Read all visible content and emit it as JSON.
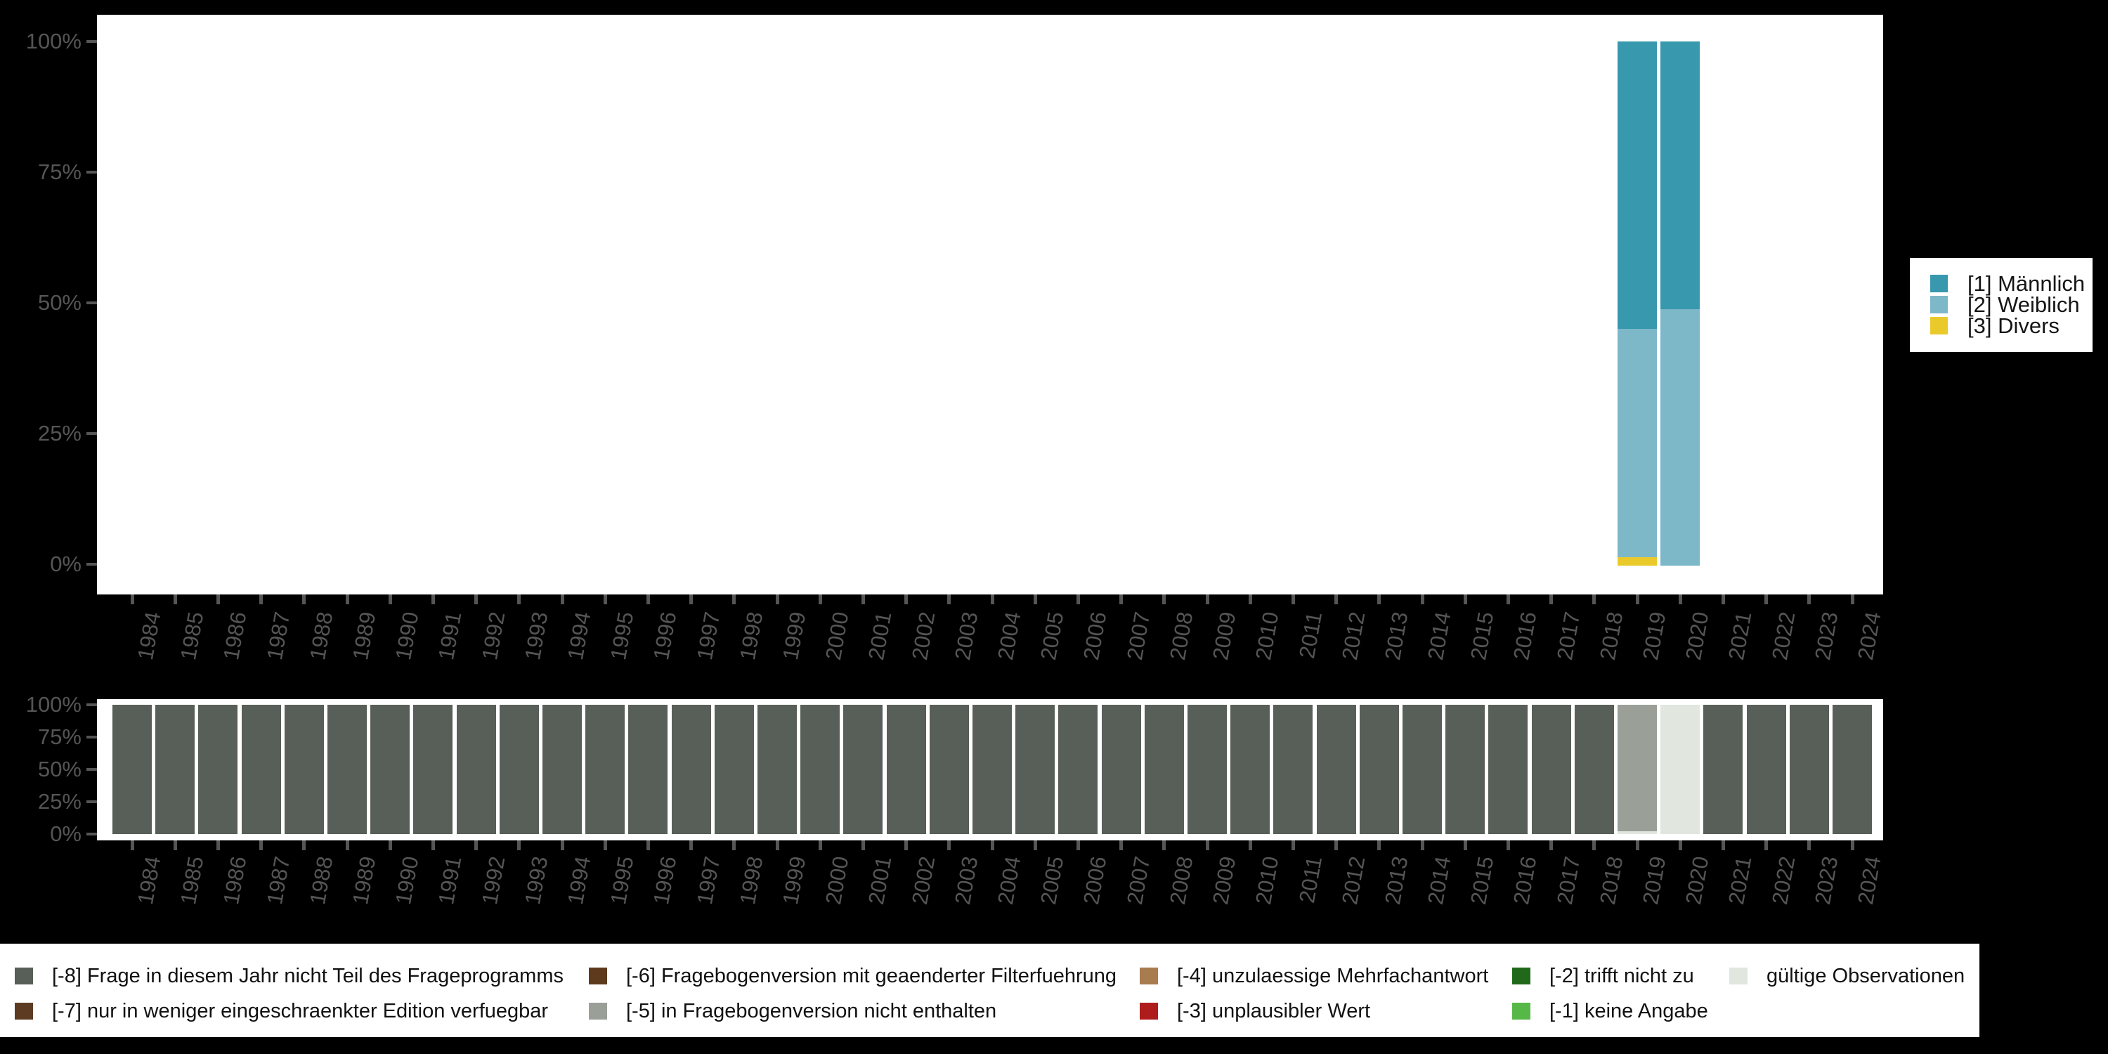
{
  "colors": {
    "background": "#000000",
    "panel": "#FFFFFF",
    "axis_text": "#555555"
  },
  "chart_data": [
    {
      "id": "gender-distribution-by-year",
      "type": "bar",
      "stacked": true,
      "title": "",
      "x": [
        "1984",
        "1985",
        "1986",
        "1987",
        "1988",
        "1989",
        "1990",
        "1991",
        "1992",
        "1993",
        "1994",
        "1995",
        "1996",
        "1997",
        "1998",
        "1999",
        "2000",
        "2001",
        "2002",
        "2003",
        "2004",
        "2005",
        "2006",
        "2007",
        "2008",
        "2009",
        "2010",
        "2011",
        "2012",
        "2013",
        "2014",
        "2015",
        "2016",
        "2017",
        "2018",
        "2019",
        "2020",
        "2021",
        "2022",
        "2023",
        "2024"
      ],
      "ylim": [
        0,
        100
      ],
      "y_tick_labels": [
        "100%",
        "75%",
        "50%",
        "25%",
        "0%"
      ],
      "axis_text_color": "#555555",
      "grid": false,
      "legend_position": "right",
      "series": [
        {
          "name": "[1] Männlich",
          "color": "#3898AE",
          "values": {
            "2019": 54.8,
            "2020": 51.1
          }
        },
        {
          "name": "[2] Weiblich",
          "color": "#7DB8C9",
          "values": {
            "2019": 43.6,
            "2020": 48.9
          }
        },
        {
          "name": "[3] Divers",
          "color": "#EACA2B",
          "values": {
            "2019": 1.6
          }
        }
      ]
    },
    {
      "id": "missing-codes-by-year",
      "type": "bar",
      "stacked": true,
      "title": "",
      "x": [
        "1984",
        "1985",
        "1986",
        "1987",
        "1988",
        "1989",
        "1990",
        "1991",
        "1992",
        "1993",
        "1994",
        "1995",
        "1996",
        "1997",
        "1998",
        "1999",
        "2000",
        "2001",
        "2002",
        "2003",
        "2004",
        "2005",
        "2006",
        "2007",
        "2008",
        "2009",
        "2010",
        "2011",
        "2012",
        "2013",
        "2014",
        "2015",
        "2016",
        "2017",
        "2018",
        "2019",
        "2020",
        "2021",
        "2022",
        "2023",
        "2024"
      ],
      "ylim": [
        0,
        100
      ],
      "y_tick_labels": [
        "100%",
        "75%",
        "50%",
        "25%",
        "0%"
      ],
      "axis_text_color": "#555555",
      "grid": false,
      "default_code": "-8",
      "overrides": {
        "2019": [
          {
            "code": "-5",
            "pct": 97.8
          },
          {
            "code": "valid",
            "pct": 2.2
          }
        ],
        "2020": [
          {
            "code": "valid",
            "pct": 100
          }
        ]
      },
      "code_colors": {
        "-8": "#585F58",
        "-7": "#5C3B22",
        "-6": "#5E3A1D",
        "-5": "#9AA098",
        "-4": "#A87C4F",
        "-3": "#AE1C1C",
        "-2": "#20691B",
        "-1": "#56B947",
        "valid": "#E1E6DF"
      }
    }
  ],
  "missing_legend": {
    "entries": [
      {
        "code": "-8",
        "label": "[-8] Frage in diesem Jahr nicht Teil des Frageprogramms",
        "color": "#585F58"
      },
      {
        "code": "-7",
        "label": "[-7] nur in weniger eingeschraenkter Edition verfuegbar",
        "color": "#5C3B22"
      },
      {
        "code": "-6",
        "label": "[-6] Fragebogenversion mit geaenderter Filterfuehrung",
        "color": "#5E3A1D"
      },
      {
        "code": "-5",
        "label": "[-5] in Fragebogenversion nicht enthalten",
        "color": "#9AA098"
      },
      {
        "code": "-4",
        "label": "[-4] unzulaessige Mehrfachantwort",
        "color": "#A87C4F"
      },
      {
        "code": "-3",
        "label": "[-3] unplausibler Wert",
        "color": "#AE1C1C"
      },
      {
        "code": "-2",
        "label": "[-2] trifft nicht zu",
        "color": "#20691B"
      },
      {
        "code": "-1",
        "label": "[-1] keine Angabe",
        "color": "#56B947"
      },
      {
        "code": "valid",
        "label": "gültige Observationen",
        "color": "#E1E6DF"
      }
    ]
  }
}
